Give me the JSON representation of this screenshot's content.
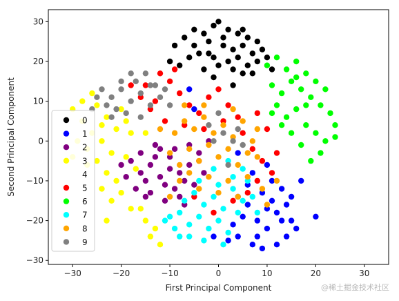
{
  "chart_data": {
    "type": "scatter",
    "title": "",
    "xlabel": "First Principal Component",
    "ylabel": "Second Principal Component",
    "xlim": [
      -35,
      35
    ],
    "ylim": [
      -31,
      33
    ],
    "xticks": [
      -30,
      -20,
      -10,
      0,
      10,
      20,
      30
    ],
    "yticks": [
      -30,
      -20,
      -10,
      0,
      10,
      20,
      30
    ],
    "grid": false,
    "legend_position": "center-left",
    "series": [
      {
        "name": "0",
        "color": "#000000",
        "points": [
          [
            -3,
            27
          ],
          [
            -1,
            29
          ],
          [
            0,
            30
          ],
          [
            2,
            28
          ],
          [
            4,
            27
          ],
          [
            6,
            26
          ],
          [
            8,
            25
          ],
          [
            -5,
            24
          ],
          [
            -2,
            25
          ],
          [
            1,
            24
          ],
          [
            3,
            23
          ],
          [
            5,
            24
          ],
          [
            7,
            22
          ],
          [
            9,
            23
          ],
          [
            -6,
            21
          ],
          [
            -4,
            22
          ],
          [
            -1,
            21
          ],
          [
            2,
            20
          ],
          [
            4,
            21
          ],
          [
            6,
            19
          ],
          [
            8,
            20
          ],
          [
            -3,
            18
          ],
          [
            0,
            19
          ],
          [
            3,
            18
          ],
          [
            5,
            17
          ],
          [
            -7,
            26
          ],
          [
            -9,
            24
          ],
          [
            10,
            21
          ],
          [
            1,
            26
          ],
          [
            -2,
            22
          ],
          [
            7,
            17
          ],
          [
            -8,
            19
          ],
          [
            3,
            14
          ],
          [
            -1,
            16
          ],
          [
            11,
            18
          ],
          [
            -10,
            20
          ],
          [
            5,
            28
          ],
          [
            -5,
            28
          ]
        ]
      },
      {
        "name": "1",
        "color": "#0000ff",
        "points": [
          [
            6,
            -16
          ],
          [
            8,
            -20
          ],
          [
            10,
            -22
          ],
          [
            12,
            -18
          ],
          [
            14,
            -24
          ],
          [
            7,
            -26
          ],
          [
            4,
            -24
          ],
          [
            9,
            -13
          ],
          [
            11,
            -15
          ],
          [
            13,
            -12
          ],
          [
            15,
            -20
          ],
          [
            5,
            -19
          ],
          [
            3,
            -21
          ],
          [
            8,
            -24
          ],
          [
            12,
            -26
          ],
          [
            10,
            -17
          ],
          [
            6,
            -11
          ],
          [
            14,
            -16
          ],
          [
            2,
            -25
          ],
          [
            11,
            -10
          ],
          [
            9,
            -27
          ],
          [
            16,
            -22
          ],
          [
            20,
            -19
          ],
          [
            -1,
            -24
          ],
          [
            13,
            -20
          ],
          [
            7,
            -8
          ],
          [
            4,
            -14
          ],
          [
            15,
            -14
          ],
          [
            -6,
            13
          ],
          [
            -5,
            8
          ],
          [
            4,
            -3
          ],
          [
            10,
            -6
          ],
          [
            17,
            -10
          ]
        ]
      },
      {
        "name": "2",
        "color": "#800080",
        "points": [
          [
            -18,
            -5
          ],
          [
            -16,
            -8
          ],
          [
            -14,
            -6
          ],
          [
            -12,
            -9
          ],
          [
            -10,
            -7
          ],
          [
            -15,
            -10
          ],
          [
            -13,
            -4
          ],
          [
            -11,
            -11
          ],
          [
            -9,
            -12
          ],
          [
            -8,
            -8
          ],
          [
            -12,
            -2
          ],
          [
            -10,
            -4
          ],
          [
            -7,
            -10
          ],
          [
            -17,
            -12
          ],
          [
            -19,
            -9
          ],
          [
            -14,
            -13
          ],
          [
            -6,
            -6
          ],
          [
            -5,
            -11
          ],
          [
            -8,
            -14
          ],
          [
            -11,
            -15
          ],
          [
            -4,
            -3
          ],
          [
            -6,
            -1
          ],
          [
            -3,
            -8
          ],
          [
            -9,
            -2
          ],
          [
            -16,
            -3
          ],
          [
            -7,
            -16
          ],
          [
            -13,
            -1
          ],
          [
            -2,
            0
          ],
          [
            -20,
            -6
          ],
          [
            -15,
            -14
          ]
        ]
      },
      {
        "name": "3",
        "color": "#ffff00",
        "points": [
          [
            -30,
            8
          ],
          [
            -28,
            5
          ],
          [
            -26,
            2
          ],
          [
            -25,
            9
          ],
          [
            -24,
            0
          ],
          [
            -23,
            6
          ],
          [
            -22,
            -3
          ],
          [
            -21,
            3
          ],
          [
            -20,
            8
          ],
          [
            -27,
            -2
          ],
          [
            -25,
            -5
          ],
          [
            -23,
            -8
          ],
          [
            -21,
            -10
          ],
          [
            -19,
            -4
          ],
          [
            -18,
            2
          ],
          [
            -26,
            12
          ],
          [
            -29,
            0
          ],
          [
            -24,
            -12
          ],
          [
            -22,
            -15
          ],
          [
            -20,
            -13
          ],
          [
            -17,
            -7
          ],
          [
            -18,
            -17
          ],
          [
            -15,
            -20
          ],
          [
            -14,
            -24
          ],
          [
            -12,
            -26
          ],
          [
            -13,
            -22
          ],
          [
            -16,
            -17
          ],
          [
            -27,
            -6
          ],
          [
            -30,
            -4
          ],
          [
            -19,
            5
          ],
          [
            -28,
            10
          ],
          [
            -15,
            2
          ],
          [
            -24,
            4
          ],
          [
            -23,
            -20
          ]
        ]
      },
      {
        "name": "4",
        "color": "#ffffff",
        "points": []
      },
      {
        "name": "5",
        "color": "#ff0000",
        "points": [
          [
            -15,
            14
          ],
          [
            -12,
            17
          ],
          [
            -10,
            15
          ],
          [
            -8,
            12
          ],
          [
            -6,
            9
          ],
          [
            -4,
            7
          ],
          [
            -2,
            11
          ],
          [
            0,
            13
          ],
          [
            2,
            9
          ],
          [
            4,
            6
          ],
          [
            -9,
            18
          ],
          [
            -13,
            10
          ],
          [
            -7,
            4
          ],
          [
            -3,
            3
          ],
          [
            1,
            5
          ],
          [
            5,
            2
          ],
          [
            7,
            -2
          ],
          [
            9,
            -5
          ],
          [
            11,
            -8
          ],
          [
            8,
            -10
          ],
          [
            6,
            -13
          ],
          [
            3,
            -15
          ],
          [
            -1,
            -18
          ],
          [
            -5,
            -14
          ],
          [
            -11,
            5
          ],
          [
            -14,
            8
          ],
          [
            -16,
            11
          ],
          [
            10,
            3
          ],
          [
            12,
            -3
          ],
          [
            8,
            7
          ],
          [
            -18,
            14
          ],
          [
            -4,
            -5
          ]
        ]
      },
      {
        "name": "6",
        "color": "#00ff00",
        "points": [
          [
            10,
            19
          ],
          [
            12,
            21
          ],
          [
            14,
            18
          ],
          [
            16,
            20
          ],
          [
            18,
            17
          ],
          [
            20,
            15
          ],
          [
            11,
            14
          ],
          [
            13,
            12
          ],
          [
            15,
            15
          ],
          [
            17,
            13
          ],
          [
            19,
            11
          ],
          [
            21,
            9
          ],
          [
            23,
            7
          ],
          [
            12,
            9
          ],
          [
            14,
            6
          ],
          [
            16,
            8
          ],
          [
            18,
            4
          ],
          [
            20,
            2
          ],
          [
            22,
            0
          ],
          [
            24,
            1
          ],
          [
            17,
            -1
          ],
          [
            15,
            2
          ],
          [
            19,
            -5
          ],
          [
            21,
            -3
          ],
          [
            13,
            4
          ],
          [
            11,
            7
          ],
          [
            22,
            13
          ],
          [
            16,
            16
          ],
          [
            24,
            4
          ],
          [
            18,
            9
          ]
        ]
      },
      {
        "name": "7",
        "color": "#00ffff",
        "points": [
          [
            -8,
            -18
          ],
          [
            -6,
            -21
          ],
          [
            -4,
            -19
          ],
          [
            -2,
            -22
          ],
          [
            0,
            -20
          ],
          [
            2,
            -23
          ],
          [
            4,
            -18
          ],
          [
            -7,
            -15
          ],
          [
            -5,
            -13
          ],
          [
            -3,
            -16
          ],
          [
            -1,
            -14
          ],
          [
            1,
            -17
          ],
          [
            3,
            -12
          ],
          [
            5,
            -15
          ],
          [
            6,
            -10
          ],
          [
            -9,
            -22
          ],
          [
            -10,
            -19
          ],
          [
            -6,
            -24
          ],
          [
            -3,
            -25
          ],
          [
            1,
            -26
          ],
          [
            3,
            -9
          ],
          [
            -1,
            -7
          ],
          [
            2,
            -5
          ],
          [
            5,
            -7
          ],
          [
            7,
            -14
          ],
          [
            -11,
            -20
          ],
          [
            0,
            -11
          ],
          [
            -4,
            -10
          ],
          [
            -8,
            -24
          ],
          [
            8,
            -18
          ]
        ]
      },
      {
        "name": "8",
        "color": "#ffa500",
        "points": [
          [
            -10,
            -3
          ],
          [
            -8,
            -6
          ],
          [
            -6,
            -2
          ],
          [
            -4,
            -5
          ],
          [
            -2,
            -1
          ],
          [
            0,
            -4
          ],
          [
            2,
            -2
          ],
          [
            4,
            -6
          ],
          [
            6,
            -3
          ],
          [
            -9,
            2
          ],
          [
            -7,
            5
          ],
          [
            -5,
            3
          ],
          [
            -3,
            6
          ],
          [
            -1,
            2
          ],
          [
            1,
            4
          ],
          [
            3,
            1
          ],
          [
            5,
            5
          ],
          [
            7,
            0
          ],
          [
            -8,
            -10
          ],
          [
            -6,
            -8
          ],
          [
            -4,
            -12
          ],
          [
            -2,
            -9
          ],
          [
            0,
            -13
          ],
          [
            2,
            -10
          ],
          [
            4,
            -14
          ],
          [
            6,
            -9
          ],
          [
            8,
            -4
          ],
          [
            9,
            -12
          ],
          [
            10,
            -16
          ],
          [
            -10,
            -14
          ],
          [
            -3,
            9
          ],
          [
            3,
            8
          ],
          [
            -12,
            3
          ],
          [
            8,
            3
          ],
          [
            -7,
            9
          ],
          [
            12,
            -10
          ]
        ]
      },
      {
        "name": "9",
        "color": "#808080",
        "points": [
          [
            -24,
            13
          ],
          [
            -22,
            11
          ],
          [
            -20,
            13
          ],
          [
            -18,
            10
          ],
          [
            -16,
            12
          ],
          [
            -14,
            9
          ],
          [
            -12,
            11
          ],
          [
            -23,
            9
          ],
          [
            -21,
            8
          ],
          [
            -19,
            7
          ],
          [
            -17,
            15
          ],
          [
            -15,
            17
          ],
          [
            -13,
            14
          ],
          [
            -25,
            11
          ],
          [
            -26,
            8
          ],
          [
            -11,
            13
          ],
          [
            -20,
            15
          ],
          [
            -18,
            17
          ],
          [
            -16,
            6
          ],
          [
            -10,
            9
          ],
          [
            -22,
            6
          ],
          [
            -14,
            14
          ],
          [
            1,
            2
          ],
          [
            3,
            0
          ],
          [
            -2,
            4
          ],
          [
            5,
            -1
          ],
          [
            0,
            7
          ],
          [
            -1,
            0
          ],
          [
            2,
            -6
          ],
          [
            4,
            3
          ]
        ]
      }
    ]
  },
  "watermark": "@稀土掘金技术社区"
}
